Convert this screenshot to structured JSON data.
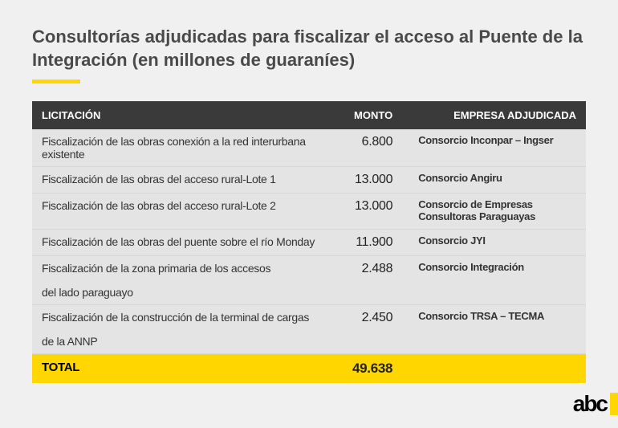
{
  "title": "Consultorías adjudicadas para fiscalizar el acceso al Puente de la Integración (en millones de guaraníes)",
  "colors": {
    "accent": "#ffd600",
    "header_bg": "#3a3a3a",
    "header_text": "#ffffff",
    "page_bg": "#f0f0f0",
    "row_bg": "#e4e4e4",
    "text": "#333333"
  },
  "columns": {
    "licitacion": "LICITACIÓN",
    "monto": "MONTO",
    "empresa": "EMPRESA ADJUDICADA"
  },
  "rows": [
    {
      "licitacion": "Fiscalización de las obras conexión a la red interurbana existente",
      "licitacion_line2": "",
      "monto": "6.800",
      "empresa": "Consorcio Inconpar – Ingser"
    },
    {
      "licitacion": "Fiscalización de las obras del acceso rural-Lote 1",
      "licitacion_line2": "",
      "monto": "13.000",
      "empresa": "Consorcio Angiru"
    },
    {
      "licitacion": "Fiscalización de las obras del acceso rural-Lote 2",
      "licitacion_line2": "",
      "monto": "13.000",
      "empresa": "Consorcio de Empresas Consultoras Paraguayas"
    },
    {
      "licitacion": "Fiscalización de las obras del puente sobre el río Monday",
      "licitacion_line2": "",
      "monto": "11.900",
      "empresa": "Consorcio JYI"
    },
    {
      "licitacion": "Fiscalización de la zona primaria de los accesos",
      "licitacion_line2": "del lado paraguayo",
      "monto": "2.488",
      "empresa": "Consorcio Integración"
    },
    {
      "licitacion": "Fiscalización de la construcción de la terminal de cargas",
      "licitacion_line2": "de la ANNP",
      "monto": "2.450",
      "empresa": "Consorcio TRSA – TECMA"
    }
  ],
  "total": {
    "label": "TOTAL",
    "value": "49.638"
  },
  "logo": "abc"
}
